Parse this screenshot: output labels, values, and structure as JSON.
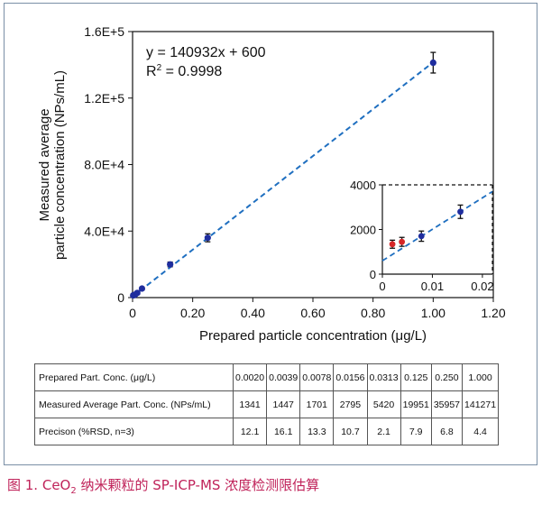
{
  "chart_data": {
    "type": "scatter",
    "xlabel": "Prepared particle concentration (μg/L)",
    "ylabel_line1": "Measured average",
    "ylabel_line2": "particle concentration (NPs/mL)",
    "xlim": [
      0,
      1.2
    ],
    "ylim": [
      0,
      160000
    ],
    "x_ticks": [
      0,
      0.2,
      0.4,
      0.6,
      0.8,
      1.0,
      1.2
    ],
    "x_tick_labels": [
      "0",
      "0.20",
      "0.40",
      "0.60",
      "0.80",
      "1.00",
      "1.20"
    ],
    "y_ticks": [
      0,
      40000,
      80000,
      120000,
      160000
    ],
    "y_tick_labels": [
      "0",
      "4.0E+4",
      "8.0E+4",
      "1.2E+5",
      "1.6E+5"
    ],
    "equation": "y = 140932x + 600",
    "r2_prefix": "R",
    "r2_sup": "2",
    "r2_value": " = 0.9998",
    "fit": {
      "slope": 140932,
      "intercept": 600
    },
    "points": [
      {
        "x": 0.002,
        "y": 1341,
        "err": 800
      },
      {
        "x": 0.0039,
        "y": 1447,
        "err": 800
      },
      {
        "x": 0.0078,
        "y": 1701,
        "err": 800
      },
      {
        "x": 0.0156,
        "y": 2795,
        "err": 800
      },
      {
        "x": 0.0313,
        "y": 5420,
        "err": 800
      },
      {
        "x": 0.125,
        "y": 19951,
        "err": 1400
      },
      {
        "x": 0.25,
        "y": 35957,
        "err": 2400
      },
      {
        "x": 1.0,
        "y": 141271,
        "err": 6200
      }
    ],
    "inset": {
      "xlim": [
        0,
        0.022
      ],
      "ylim": [
        0,
        4000
      ],
      "x_ticks": [
        0,
        0.01,
        0.02
      ],
      "x_tick_labels": [
        "0",
        "0.01",
        "0.02"
      ],
      "y_ticks": [
        0,
        2000,
        4000
      ],
      "y_tick_labels": [
        "0",
        "2000",
        "4000"
      ],
      "points": [
        {
          "x": 0.002,
          "y": 1341,
          "err": 180,
          "color": "#d62728"
        },
        {
          "x": 0.0039,
          "y": 1447,
          "err": 200,
          "color": "#d62728"
        },
        {
          "x": 0.0078,
          "y": 1701,
          "err": 230,
          "color": "#1f2d9e"
        },
        {
          "x": 0.0156,
          "y": 2795,
          "err": 300,
          "color": "#1f2d9e"
        }
      ]
    },
    "colors": {
      "point": "#1f2d9e",
      "fit_line": "#1f6fc0",
      "axis": "#111111"
    }
  },
  "table": {
    "rows": [
      {
        "label": "Prepared Part. Conc. (μg/L)",
        "values": [
          "0.0020",
          "0.0039",
          "0.0078",
          "0.0156",
          "0.0313",
          "0.125",
          "0.250",
          "1.000"
        ]
      },
      {
        "label": "Measured Average Part. Conc. (NPs/mL)",
        "values": [
          "1341",
          "1447",
          "1701",
          "2795",
          "5420",
          "19951",
          "35957",
          "141271"
        ]
      },
      {
        "label": "Precison (%RSD, n=3)",
        "values": [
          "12.1",
          "16.1",
          "13.3",
          "10.7",
          "2.1",
          "7.9",
          "6.8",
          "4.4"
        ]
      }
    ]
  },
  "caption": {
    "prefix": "图 1. CeO",
    "sub": "2",
    "suffix": " 纳米颗粒的 SP-ICP-MS 浓度检测限估算",
    "color": "#c0235a"
  }
}
